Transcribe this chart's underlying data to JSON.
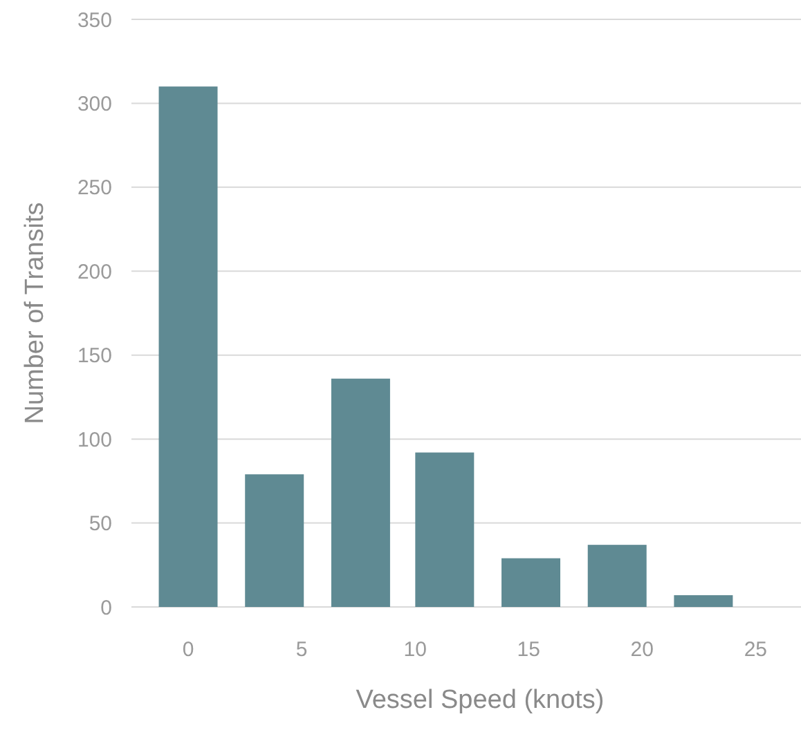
{
  "chart_data": {
    "type": "bar",
    "xlabel": "Vessel Speed (knots)",
    "ylabel": "Number of Transits",
    "x": [
      0,
      3.8,
      7.6,
      11.3,
      15.1,
      18.9,
      22.7
    ],
    "values": [
      310,
      79,
      136,
      92,
      29,
      37,
      7
    ],
    "color": "#5f8a93",
    "xlim": [
      -2.5,
      27
    ],
    "xticks": [
      0,
      5,
      10,
      15,
      20,
      25
    ],
    "ylim": [
      0,
      350
    ],
    "yticks": [
      0,
      50,
      100,
      150,
      200,
      250,
      300,
      350
    ],
    "grid": "y"
  }
}
